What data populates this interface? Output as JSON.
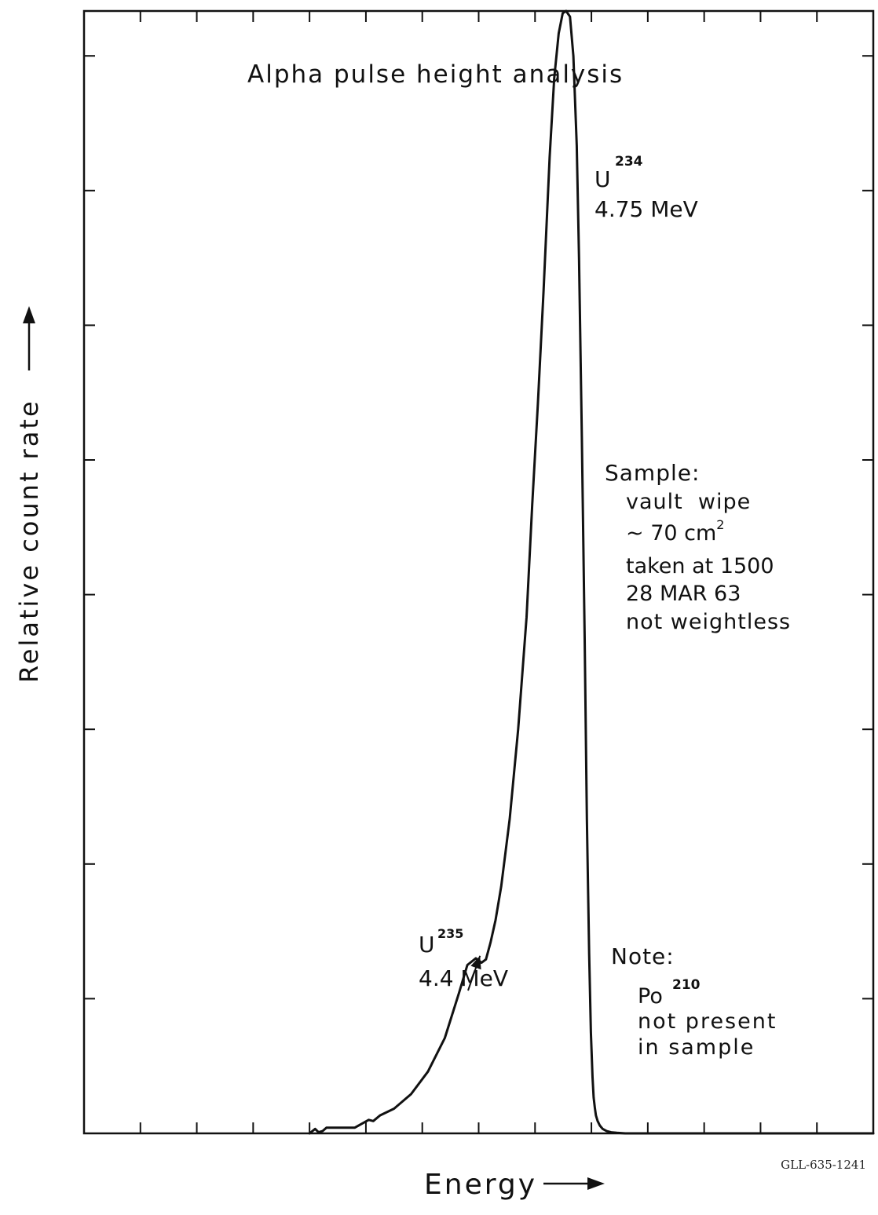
{
  "chart_data": {
    "type": "line",
    "title": "Alpha pulse height analysis",
    "xlabel": "Energy",
    "ylabel": "Relative count rate",
    "grid": false,
    "xlim": [
      0,
      140
    ],
    "ylim": [
      0,
      100
    ],
    "x_major_ticks": [
      0,
      10,
      20,
      30,
      40,
      50,
      60,
      70,
      80,
      90,
      100,
      110,
      120,
      130,
      140
    ],
    "y_major_ticks": [
      0,
      12,
      24,
      36,
      48,
      60,
      72,
      84,
      96,
      108
    ],
    "series": [
      {
        "x": [
          40.0,
          41.0,
          41.6,
          42.3,
          43.0,
          45.0,
          48.0,
          50.5,
          51.3,
          52.5,
          55.0,
          58.0,
          61.0,
          64.0,
          66.5,
          68.0,
          69.5,
          70.5,
          71.3,
          72.1,
          73.0,
          74.0,
          75.5,
          77.0,
          78.5,
          79.5,
          80.5,
          81.5,
          82.6,
          83.4,
          84.2,
          84.9,
          85.5,
          86.2,
          86.8,
          87.4,
          87.8,
          88.3,
          88.8,
          89.2,
          89.6,
          89.9,
          90.2,
          90.4,
          90.6,
          90.8,
          91.1,
          91.5,
          92.0,
          92.7,
          93.5,
          94.5,
          96.0,
          98.0,
          100.0,
          103.0,
          140.0
        ],
        "y": [
          0.0,
          0.4,
          0.1,
          0.2,
          0.5,
          0.5,
          0.5,
          1.2,
          1.1,
          1.6,
          2.2,
          3.5,
          5.5,
          8.5,
          12.5,
          15.0,
          15.6,
          15.2,
          15.5,
          17.0,
          19.0,
          22.0,
          28.0,
          36.0,
          46.0,
          56.0,
          65.0,
          75.0,
          87.0,
          94.0,
          98.0,
          99.8,
          100.0,
          99.5,
          96.0,
          88.0,
          78.0,
          62.0,
          44.0,
          28.0,
          16.0,
          9.0,
          5.0,
          3.2,
          2.3,
          1.6,
          1.1,
          0.7,
          0.4,
          0.2,
          0.1,
          0.05,
          0.0,
          0.0,
          0.0,
          0.0,
          0.0
        ]
      }
    ],
    "annotations": {
      "u234_symbol": "U",
      "u234_mass": "234",
      "u234_energy": "4.75 MeV",
      "u235_symbol": "U",
      "u235_mass": "235",
      "u235_energy": "4.4 MeV",
      "u235_arrow_point": {
        "x": 70.8,
        "y": 15.4
      },
      "sample_title": "Sample:",
      "sample_line1": "vault  wipe",
      "sample_line2_pre": "~ 70 cm",
      "sample_line2_sup": "2",
      "sample_line3": "taken at 1500",
      "sample_line4": "28 MAR 63",
      "sample_line5": "not weightless",
      "note_title": "Note:",
      "note_po_symbol": "Po",
      "note_po_mass": "210",
      "note_line2": "not present",
      "note_line3": "in sample",
      "figure_code": "GLL-635-1241"
    }
  }
}
